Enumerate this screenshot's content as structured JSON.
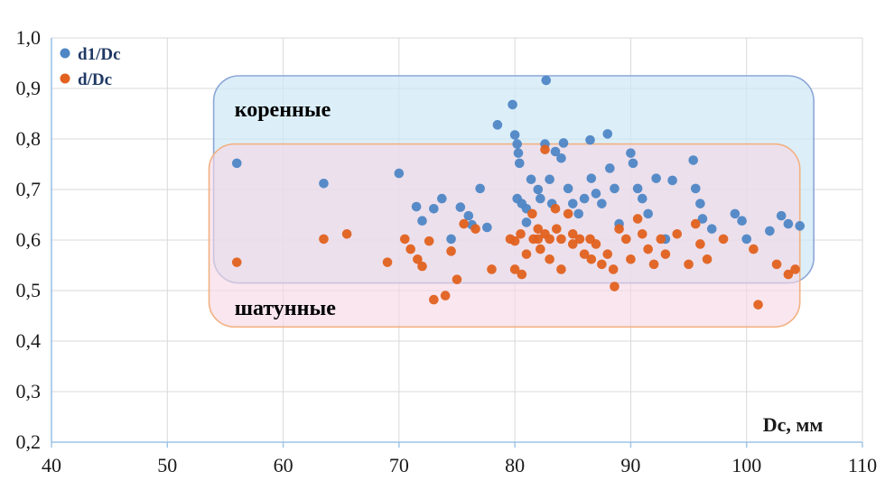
{
  "chart_data": {
    "type": "scatter",
    "title": "",
    "xlabel": "Dc, мм",
    "ylabel": "",
    "xlim": [
      40,
      110
    ],
    "ylim": [
      0.2,
      1.0
    ],
    "grid": true,
    "grid_color": "#d9d9d9",
    "axis_color": "#9dc3e6",
    "tick_label_color": "#1a1a1a",
    "x_ticks": [
      {
        "v": 40,
        "label": "40"
      },
      {
        "v": 50,
        "label": "50"
      },
      {
        "v": 60,
        "label": "60"
      },
      {
        "v": 70,
        "label": "70"
      },
      {
        "v": 80,
        "label": "80"
      },
      {
        "v": 90,
        "label": "90"
      },
      {
        "v": 100,
        "label": "100"
      },
      {
        "v": 110,
        "label": "110"
      }
    ],
    "y_ticks": [
      {
        "v": 1.0,
        "label": "1,0"
      },
      {
        "v": 0.9,
        "label": "0,9"
      },
      {
        "v": 0.8,
        "label": "0,8"
      },
      {
        "v": 0.7,
        "label": "0,7"
      },
      {
        "v": 0.6,
        "label": "0,6"
      },
      {
        "v": 0.5,
        "label": "0,5"
      },
      {
        "v": 0.4,
        "label": "0,4"
      },
      {
        "v": 0.3,
        "label": "0,3"
      },
      {
        "v": 0.2,
        "label": "0,2"
      }
    ],
    "legend": {
      "position": "top-left",
      "text_color": "#1f3864"
    },
    "regions": [
      {
        "name": "korennye",
        "label": "коренные",
        "x0": 54.0,
        "x1": 105.8,
        "y0": 0.515,
        "y1": 0.925,
        "fill": "#cfe9f6",
        "fill_opacity": 0.72,
        "stroke": "#8ca6d8",
        "label_x": 55.8,
        "label_y": 0.845,
        "label_color": "#000000"
      },
      {
        "name": "shatunnye",
        "label": "шатунные",
        "x0": 53.6,
        "x1": 104.6,
        "y0": 0.428,
        "y1": 0.79,
        "fill": "#f6d6e4",
        "fill_opacity": 0.62,
        "stroke": "#f2b183",
        "label_x": 55.8,
        "label_y": 0.452,
        "label_color": "#000000"
      }
    ],
    "series": [
      {
        "name": "d1/Dc",
        "color": "#4f86c6",
        "points": [
          [
            56,
            0.752
          ],
          [
            63.5,
            0.712
          ],
          [
            70,
            0.732
          ],
          [
            71.5,
            0.666
          ],
          [
            72,
            0.638
          ],
          [
            73,
            0.662
          ],
          [
            73.7,
            0.682
          ],
          [
            74.5,
            0.602
          ],
          [
            75.3,
            0.665
          ],
          [
            76,
            0.648
          ],
          [
            76.3,
            0.63
          ],
          [
            77,
            0.702
          ],
          [
            77.6,
            0.625
          ],
          [
            78.5,
            0.828
          ],
          [
            79.8,
            0.868
          ],
          [
            80,
            0.808
          ],
          [
            80.2,
            0.79
          ],
          [
            80.3,
            0.772
          ],
          [
            80.4,
            0.752
          ],
          [
            80.2,
            0.682
          ],
          [
            80.6,
            0.672
          ],
          [
            81,
            0.662
          ],
          [
            81,
            0.635
          ],
          [
            81.4,
            0.72
          ],
          [
            82,
            0.7
          ],
          [
            82.2,
            0.682
          ],
          [
            82.7,
            0.916
          ],
          [
            82.6,
            0.79
          ],
          [
            83,
            0.72
          ],
          [
            83.2,
            0.672
          ],
          [
            83.5,
            0.775
          ],
          [
            84.2,
            0.792
          ],
          [
            84,
            0.762
          ],
          [
            84.6,
            0.702
          ],
          [
            85,
            0.672
          ],
          [
            85.5,
            0.652
          ],
          [
            86,
            0.682
          ],
          [
            86.5,
            0.798
          ],
          [
            86.6,
            0.722
          ],
          [
            87,
            0.692
          ],
          [
            87.5,
            0.672
          ],
          [
            88,
            0.81
          ],
          [
            88.2,
            0.742
          ],
          [
            88.6,
            0.702
          ],
          [
            89,
            0.632
          ],
          [
            90,
            0.772
          ],
          [
            90.2,
            0.752
          ],
          [
            90.6,
            0.702
          ],
          [
            91,
            0.682
          ],
          [
            91.5,
            0.652
          ],
          [
            92.2,
            0.722
          ],
          [
            93,
            0.602
          ],
          [
            93.6,
            0.718
          ],
          [
            95.4,
            0.758
          ],
          [
            95.6,
            0.702
          ],
          [
            96,
            0.672
          ],
          [
            96.2,
            0.642
          ],
          [
            97,
            0.622
          ],
          [
            99,
            0.652
          ],
          [
            99.6,
            0.638
          ],
          [
            100,
            0.602
          ],
          [
            102,
            0.618
          ],
          [
            103,
            0.648
          ],
          [
            103.6,
            0.632
          ],
          [
            104.6,
            0.628
          ]
        ]
      },
      {
        "name": "d/Dc",
        "color": "#e2611f",
        "points": [
          [
            56,
            0.556
          ],
          [
            63.5,
            0.602
          ],
          [
            65.5,
            0.612
          ],
          [
            69,
            0.556
          ],
          [
            70.5,
            0.602
          ],
          [
            71,
            0.582
          ],
          [
            71.6,
            0.562
          ],
          [
            72,
            0.548
          ],
          [
            72.6,
            0.598
          ],
          [
            73,
            0.482
          ],
          [
            74,
            0.49
          ],
          [
            74.5,
            0.578
          ],
          [
            75,
            0.522
          ],
          [
            75.6,
            0.632
          ],
          [
            76.6,
            0.622
          ],
          [
            78,
            0.542
          ],
          [
            79.6,
            0.602
          ],
          [
            80,
            0.598
          ],
          [
            80,
            0.542
          ],
          [
            80.5,
            0.612
          ],
          [
            80.6,
            0.532
          ],
          [
            81,
            0.572
          ],
          [
            81.5,
            0.652
          ],
          [
            81.6,
            0.602
          ],
          [
            82,
            0.622
          ],
          [
            82,
            0.602
          ],
          [
            82.2,
            0.582
          ],
          [
            82.6,
            0.779
          ],
          [
            82.6,
            0.612
          ],
          [
            83,
            0.602
          ],
          [
            83,
            0.562
          ],
          [
            83.5,
            0.662
          ],
          [
            83.6,
            0.622
          ],
          [
            84,
            0.602
          ],
          [
            84,
            0.542
          ],
          [
            84.6,
            0.652
          ],
          [
            85,
            0.612
          ],
          [
            85,
            0.592
          ],
          [
            85.6,
            0.602
          ],
          [
            86,
            0.572
          ],
          [
            86.5,
            0.602
          ],
          [
            86.6,
            0.562
          ],
          [
            87,
            0.592
          ],
          [
            87.5,
            0.552
          ],
          [
            88,
            0.572
          ],
          [
            88.5,
            0.542
          ],
          [
            88.6,
            0.508
          ],
          [
            89,
            0.622
          ],
          [
            89.6,
            0.602
          ],
          [
            90,
            0.562
          ],
          [
            90.6,
            0.642
          ],
          [
            91,
            0.612
          ],
          [
            91.5,
            0.582
          ],
          [
            92,
            0.552
          ],
          [
            92.6,
            0.602
          ],
          [
            93,
            0.572
          ],
          [
            94,
            0.612
          ],
          [
            95,
            0.552
          ],
          [
            95.6,
            0.632
          ],
          [
            96,
            0.592
          ],
          [
            96.6,
            0.562
          ],
          [
            98,
            0.602
          ],
          [
            100.6,
            0.582
          ],
          [
            101,
            0.472
          ],
          [
            102.6,
            0.552
          ],
          [
            103.6,
            0.532
          ],
          [
            104.2,
            0.542
          ]
        ]
      }
    ]
  }
}
